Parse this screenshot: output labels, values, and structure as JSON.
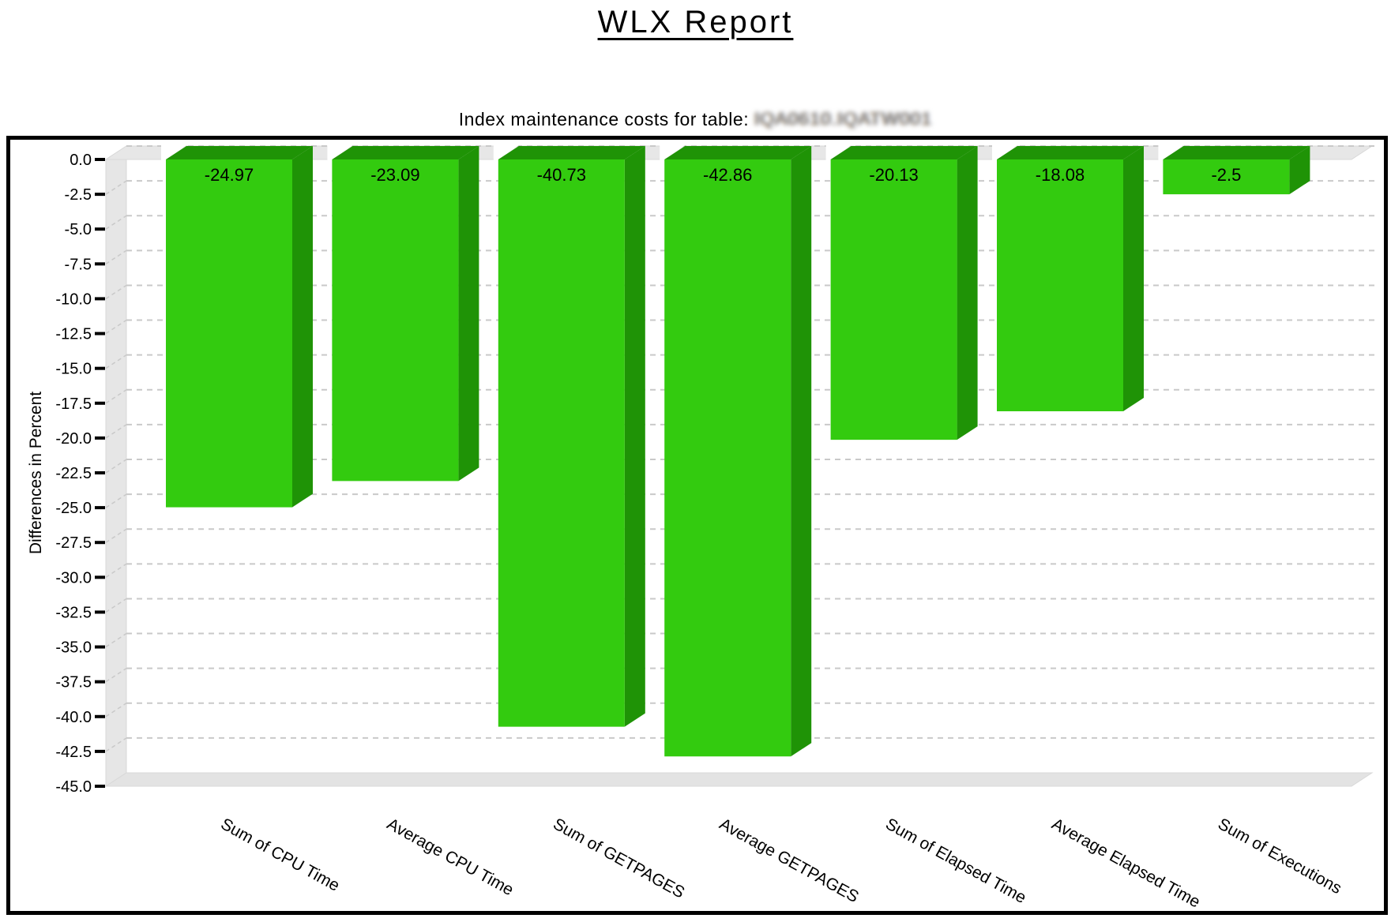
{
  "page": {
    "title": "WLX Report",
    "subtitle_prefix": "Index maintenance costs for table: ",
    "table_name_obscured": "IQA0610.IQATW001"
  },
  "chart_data": {
    "type": "bar",
    "variant": "3d-column-negative",
    "categories": [
      "Sum of CPU Time",
      "Average CPU Time",
      "Sum of GETPAGES",
      "Average GETPAGES",
      "Sum of Elapsed Time",
      "Average Elapsed Time",
      "Sum of Executions"
    ],
    "values": [
      -24.97,
      -23.09,
      -40.73,
      -42.86,
      -20.13,
      -18.08,
      -2.5
    ],
    "bar_value_labels": [
      "-24.97",
      "-23.09",
      "-40.73",
      "-42.86",
      "-20.13",
      "-18.08",
      "-2.5"
    ],
    "xlabel": "",
    "ylabel": "Differences in Percent",
    "ylim": [
      -45,
      0
    ],
    "y_tick_step": 2.5,
    "y_tick_labels": [
      "0.0",
      "-2.5",
      "-5.0",
      "-7.5",
      "-10.0",
      "-12.5",
      "-15.0",
      "-17.5",
      "-20.0",
      "-22.5",
      "-25.0",
      "-27.5",
      "-30.0",
      "-32.5",
      "-35.0",
      "-37.5",
      "-40.0",
      "-42.5",
      "-45.0"
    ],
    "grid": "horizontal-dashed",
    "legend_position": "none",
    "colors": {
      "bar_front": "#33CB0F",
      "bar_side": "#1F9306",
      "bar_top": "#1F9306",
      "wall": "#E6E6E6",
      "floor": "#E3E3E3",
      "ceiling": "#E7E7E7",
      "edge": "#D8D8D8",
      "gridline": "#C9C9C9",
      "text": "#000000",
      "frame": "#000000"
    }
  }
}
